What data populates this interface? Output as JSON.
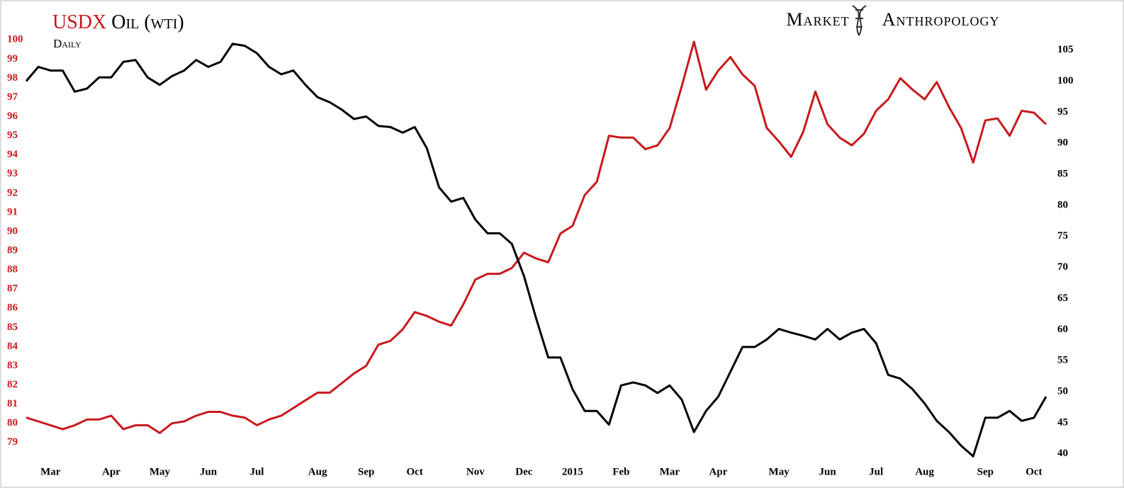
{
  "chart_data": {
    "type": "line",
    "subtitle": "Daily",
    "annotation": "Market Anthropology",
    "categories": [
      null,
      null,
      "Mar",
      null,
      null,
      null,
      null,
      "Apr",
      null,
      null,
      null,
      "May",
      null,
      null,
      null,
      "Jun",
      null,
      null,
      null,
      "Jul",
      null,
      null,
      null,
      null,
      "Aug",
      null,
      null,
      null,
      "Sep",
      null,
      null,
      null,
      "Oct",
      null,
      null,
      null,
      null,
      "Nov",
      null,
      null,
      null,
      "Dec",
      null,
      null,
      null,
      "2015",
      null,
      null,
      null,
      "Feb",
      null,
      null,
      null,
      "Mar",
      null,
      null,
      null,
      "Apr",
      null,
      null,
      null,
      null,
      "May",
      null,
      null,
      null,
      "Jun",
      null,
      null,
      null,
      "Jul",
      null,
      null,
      null,
      "Aug",
      null,
      null,
      null,
      null,
      "Sep",
      null,
      null,
      null,
      "Oct",
      null
    ],
    "series": [
      {
        "name": "USDX",
        "color": "#c8191e",
        "axis": "y",
        "values": [
          80.3,
          80.1,
          79.9,
          79.7,
          79.9,
          80.2,
          80.2,
          80.4,
          79.7,
          79.9,
          79.9,
          79.5,
          80.0,
          80.1,
          80.4,
          80.6,
          80.6,
          80.4,
          80.3,
          79.9,
          80.2,
          80.4,
          80.8,
          81.2,
          81.6,
          81.6,
          82.1,
          82.6,
          83.0,
          84.1,
          84.3,
          84.9,
          85.8,
          85.6,
          85.3,
          85.1,
          86.2,
          87.5,
          87.8,
          87.8,
          88.1,
          88.9,
          88.6,
          88.4,
          89.9,
          90.3,
          91.9,
          92.6,
          95.0,
          94.9,
          94.9,
          94.3,
          94.5,
          95.4,
          97.6,
          99.9,
          97.4,
          98.4,
          99.1,
          98.2,
          97.6,
          95.4,
          94.7,
          93.9,
          95.2,
          97.3,
          95.6,
          94.9,
          94.5,
          95.1,
          96.3,
          96.9,
          98.0,
          97.4,
          96.9,
          97.8,
          96.5,
          95.4,
          93.6,
          95.8,
          95.9,
          95.0,
          96.3,
          96.2,
          95.6
        ]
      },
      {
        "name": "Oil (wti)",
        "color": "#000000",
        "axis": "y2",
        "values": [
          100.0,
          102.3,
          101.7,
          101.7,
          98.3,
          98.8,
          100.6,
          100.6,
          103.1,
          103.4,
          100.6,
          99.4,
          100.8,
          101.7,
          103.4,
          102.3,
          103.1,
          106.0,
          105.7,
          104.5,
          102.3,
          101.1,
          101.7,
          99.4,
          97.4,
          96.6,
          95.4,
          93.9,
          94.3,
          92.8,
          92.6,
          91.7,
          92.6,
          89.2,
          82.9,
          80.6,
          81.2,
          77.7,
          75.5,
          75.5,
          73.8,
          68.6,
          61.8,
          55.5,
          55.5,
          50.4,
          46.9,
          46.9,
          44.7,
          51.0,
          51.5,
          51.0,
          49.8,
          51.0,
          48.7,
          43.5,
          46.9,
          49.2,
          53.2,
          57.2,
          57.2,
          58.4,
          60.1,
          59.5,
          59.0,
          58.4,
          60.1,
          58.4,
          59.5,
          60.1,
          57.8,
          52.7,
          52.1,
          50.4,
          48.1,
          45.3,
          43.5,
          41.3,
          39.6,
          45.8,
          45.8,
          46.9,
          45.3,
          45.8,
          49.2
        ]
      }
    ],
    "ylim": [
      77.7,
      100.6
    ],
    "yticks": [
      79,
      80,
      81,
      82,
      83,
      84,
      85,
      86,
      87,
      88,
      89,
      90,
      91,
      92,
      93,
      94,
      95,
      96,
      97,
      98,
      99,
      100
    ],
    "y2lim": [
      37.8,
      108.5
    ],
    "y2ticks": [
      40,
      45,
      50,
      55,
      60,
      65,
      70,
      75,
      80,
      85,
      90,
      95,
      100,
      105
    ],
    "grid": false
  }
}
